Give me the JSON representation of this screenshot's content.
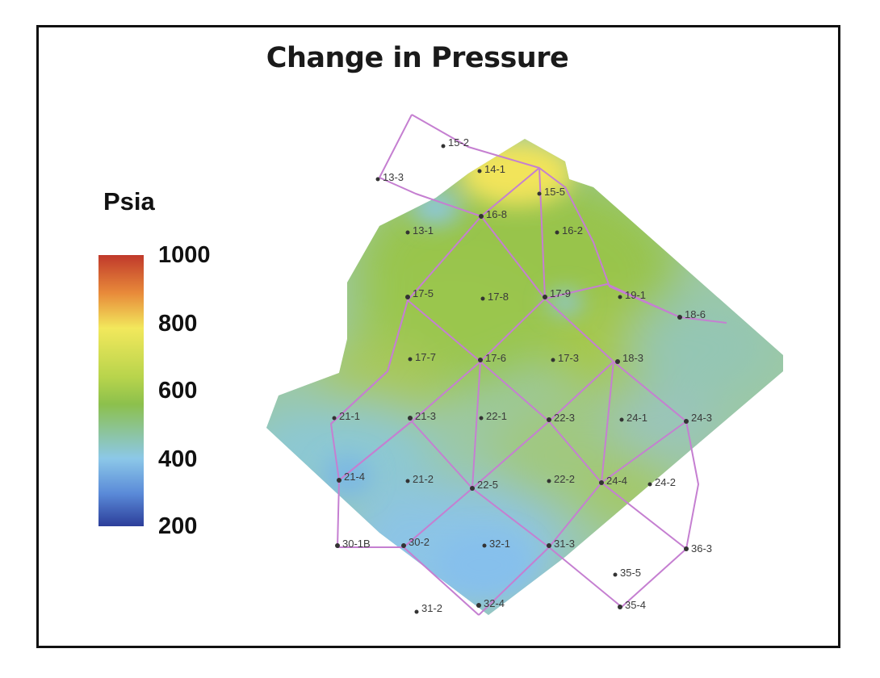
{
  "title": "Change in Pressure",
  "legend": {
    "unit": "Psia",
    "ticks": [
      "1000",
      "800",
      "600",
      "400",
      "200"
    ],
    "colors": [
      "#c0392b",
      "#f2e85c",
      "#8cc04c",
      "#8cc8e8",
      "#2c3e9a"
    ]
  },
  "well_line_color": "#c57fd1",
  "wells": [
    {
      "id": "w-15-2",
      "label": "15-2"
    },
    {
      "id": "w-14-1",
      "label": "14-1"
    },
    {
      "id": "w-13-3",
      "label": "13-3"
    },
    {
      "id": "w-15-5",
      "label": "15-5"
    },
    {
      "id": "w-16-8",
      "label": "16-8"
    },
    {
      "id": "w-13-1",
      "label": "13-1"
    },
    {
      "id": "w-16-2",
      "label": "16-2"
    },
    {
      "id": "w-17-5",
      "label": "17-5"
    },
    {
      "id": "w-17-8",
      "label": "17-8"
    },
    {
      "id": "w-17-9",
      "label": "17-9"
    },
    {
      "id": "w-19-1",
      "label": "19-1"
    },
    {
      "id": "w-18-6",
      "label": "18-6"
    },
    {
      "id": "w-17-7",
      "label": "17-7"
    },
    {
      "id": "w-17-6",
      "label": "17-6"
    },
    {
      "id": "w-17-3",
      "label": "17-3"
    },
    {
      "id": "w-18-3",
      "label": "18-3"
    },
    {
      "id": "w-21-1",
      "label": "21-1"
    },
    {
      "id": "w-21-3",
      "label": "21-3"
    },
    {
      "id": "w-22-1",
      "label": "22-1"
    },
    {
      "id": "w-22-3",
      "label": "22-3"
    },
    {
      "id": "w-24-1",
      "label": "24-1"
    },
    {
      "id": "w-24-3",
      "label": "24-3"
    },
    {
      "id": "w-21-4",
      "label": "21-4"
    },
    {
      "id": "w-21-2",
      "label": "21-2"
    },
    {
      "id": "w-22-5",
      "label": "22-5"
    },
    {
      "id": "w-22-2",
      "label": "22-2"
    },
    {
      "id": "w-24-4",
      "label": "24-4"
    },
    {
      "id": "w-24-2",
      "label": "24-2"
    },
    {
      "id": "w-30-1b",
      "label": "30-1B"
    },
    {
      "id": "w-30-2",
      "label": "30-2"
    },
    {
      "id": "w-32-1",
      "label": "32-1"
    },
    {
      "id": "w-31-3",
      "label": "31-3"
    },
    {
      "id": "w-36-3",
      "label": "36-3"
    },
    {
      "id": "w-35-5",
      "label": "35-5"
    },
    {
      "id": "w-35-4",
      "label": "35-4"
    },
    {
      "id": "w-31-2",
      "label": "31-2"
    },
    {
      "id": "w-32-4",
      "label": "32-4"
    }
  ]
}
